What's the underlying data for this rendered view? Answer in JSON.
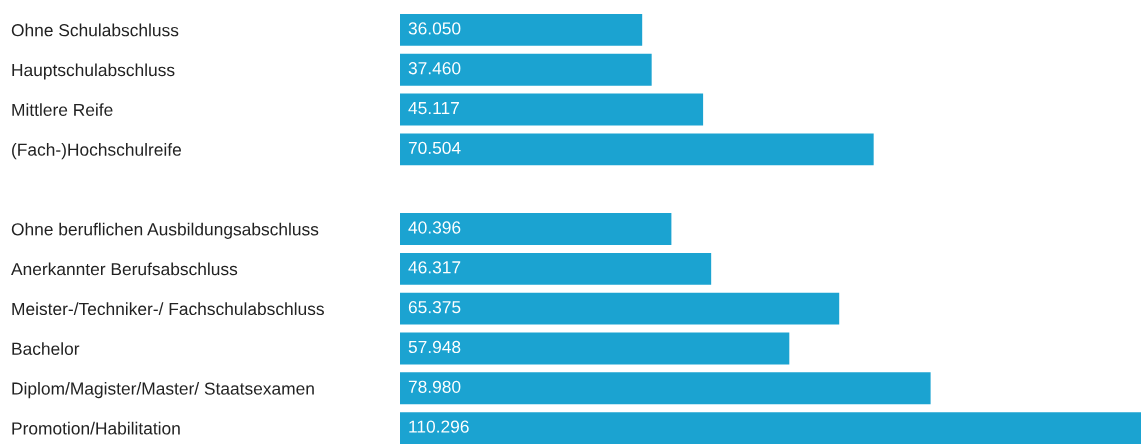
{
  "chart_data": {
    "type": "bar",
    "orientation": "horizontal",
    "categories": [
      "Ohne Schulabschluss",
      "Hauptschulabschluss",
      "Mittlere Reife",
      "(Fach-)Hochschulreife",
      null,
      "Ohne beruflichen Ausbildungsabschluss",
      "Anerkannter Berufsabschluss",
      "Meister-/Techniker-/ Fachschulabschluss",
      "Bachelor",
      "Diplom/Magister/Master/ Staatsexamen",
      "Promotion/Habilitation"
    ],
    "values": [
      36050,
      37460,
      45117,
      70504,
      null,
      40396,
      46317,
      65375,
      57948,
      78980,
      110296
    ],
    "value_labels": [
      "36.050",
      "37.460",
      "45.117",
      "70.504",
      null,
      "40.396",
      "46.317",
      "65.375",
      "57.948",
      "78.980",
      "110.296"
    ],
    "color": "#1ba3d1",
    "grid": false,
    "legend": false
  }
}
